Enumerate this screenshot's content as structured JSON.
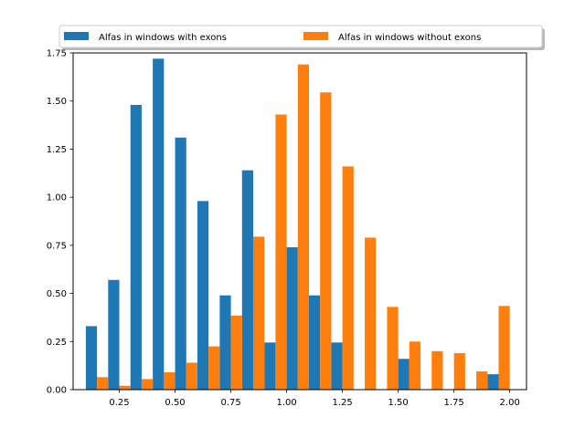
{
  "chart_data": {
    "type": "bar",
    "title": "",
    "xlabel": "",
    "ylabel": "",
    "xlim": [
      0.043,
      2.075
    ],
    "ylim": [
      0,
      1.75
    ],
    "x_ticks": [
      "0.25",
      "0.50",
      "0.75",
      "1.00",
      "1.25",
      "1.50",
      "1.75",
      "2.00"
    ],
    "y_ticks": [
      "0.00",
      "0.25",
      "0.50",
      "0.75",
      "1.00",
      "1.25",
      "1.50",
      "1.75"
    ],
    "bin_edges": [
      0.1,
      0.2,
      0.3,
      0.4,
      0.5,
      0.6,
      0.7,
      0.8,
      0.9,
      1.0,
      1.1,
      1.2,
      1.3,
      1.4,
      1.5,
      1.6,
      1.7,
      1.8,
      1.9,
      2.0
    ],
    "legend_position": "top-center, above plot",
    "grid": false,
    "series": [
      {
        "name": "Alfas in windows with exons",
        "color": "#1f77b4",
        "values": [
          0.33,
          0.57,
          1.48,
          1.72,
          1.31,
          0.98,
          0.49,
          1.14,
          0.245,
          0.74,
          0.49,
          0.245,
          0,
          0,
          0.16,
          0,
          0,
          0,
          0.08
        ]
      },
      {
        "name": "Alfas in windows without exons",
        "color": "#ff7f0e",
        "values": [
          0.065,
          0.02,
          0.055,
          0.09,
          0.14,
          0.225,
          0.385,
          0.795,
          1.43,
          1.69,
          1.545,
          1.16,
          0.79,
          0.43,
          0.25,
          0.2,
          0.19,
          0.095,
          0.435
        ]
      }
    ]
  }
}
